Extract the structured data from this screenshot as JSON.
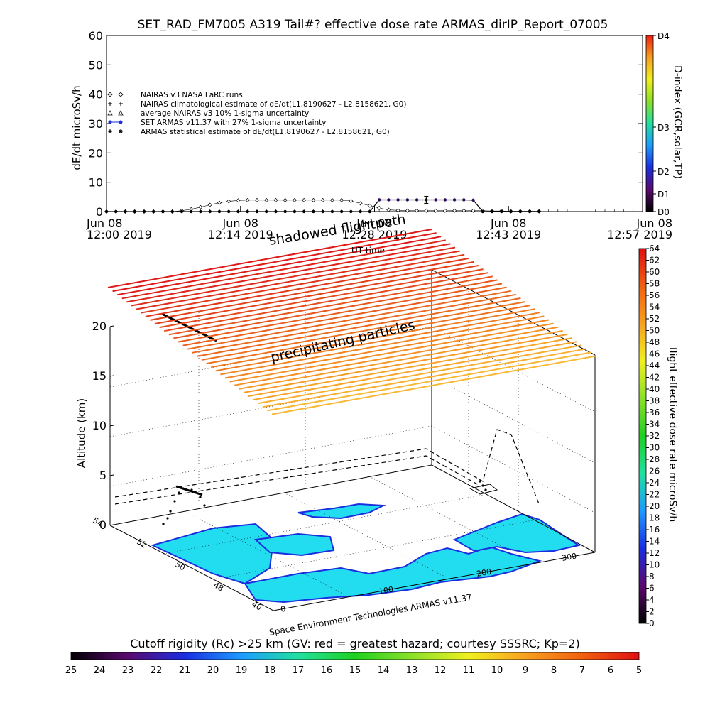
{
  "chart_data": [
    {
      "type": "line",
      "title": "SET_RAD_FM7005   A319 Tail#? effective dose rate ARMAS_dirIP_Report_07005",
      "ylabel": "dE/dt microSv/h",
      "xlabel": "UT time",
      "ylim": [
        0,
        60
      ],
      "y_ticks": [
        "0",
        "10",
        "20",
        "30",
        "40",
        "50",
        "60"
      ],
      "x_ticks": [
        {
          "line1": "Jun 08",
          "line2": "12:00 2019"
        },
        {
          "line1": "Jun 08",
          "line2": "12:14 2019"
        },
        {
          "line1": "Jun 08",
          "line2": "12:28 2019"
        },
        {
          "line1": "Jun 08",
          "line2": "12:43 2019"
        },
        {
          "line1": "Jun 08",
          "line2": "12:57 2019"
        }
      ],
      "x_range_minutes": [
        0,
        57
      ],
      "legend_position": "upper-left",
      "legend": [
        "NAIRAS v3 NASA LaRC runs",
        "NAIRAS climatological estimate of dE/dt(L1.8190627 - L2.8158621, G0)",
        "average NAIRAS v3 10% 1-sigma uncertainty",
        "SET ARMAS v11.37 with 27% 1-sigma uncertainty",
        "ARMAS statistical estimate of dE/dt(L1.8190627 - L2.8158621, G0)"
      ],
      "series": [
        {
          "name": "NAIRAS v3 NASA LaRC runs",
          "marker": "diamond",
          "x": [
            0,
            1,
            2,
            3,
            4,
            5,
            6,
            7,
            8,
            9,
            10,
            11,
            12,
            13,
            14,
            15,
            16,
            17,
            18,
            19,
            20,
            21,
            22,
            23,
            24,
            25,
            26,
            27,
            28,
            29,
            30,
            31,
            32,
            33,
            34,
            35,
            36,
            37,
            38,
            39,
            40,
            41,
            42,
            43,
            44,
            45,
            46
          ],
          "y": [
            0,
            0,
            0,
            0,
            0,
            0,
            0,
            0,
            0.3,
            0.8,
            1.5,
            2.3,
            3.0,
            3.5,
            3.8,
            3.9,
            3.9,
            3.9,
            3.9,
            3.9,
            3.9,
            3.9,
            3.9,
            3.9,
            3.9,
            3.9,
            3.6,
            2.8,
            2.0,
            1.2,
            0.6,
            0.4,
            0.3,
            0.3,
            0.3,
            0.3,
            0.3,
            0.3,
            0.3,
            0.3,
            0.3,
            0.2,
            0.2,
            0.1,
            0.1,
            0.1,
            0.1
          ]
        },
        {
          "name": "SET ARMAS v11.37 with 27% 1-sigma uncertainty",
          "marker": "dot",
          "x": [
            0,
            1,
            2,
            3,
            4,
            5,
            6,
            7,
            8,
            9,
            10,
            11,
            12,
            13,
            14,
            15,
            16,
            17,
            18,
            19,
            20,
            21,
            22,
            23,
            24,
            25,
            26,
            27,
            28,
            29,
            30,
            31,
            32,
            33,
            34,
            35,
            36,
            37,
            38,
            39,
            40,
            41,
            42,
            43,
            44,
            45,
            46
          ],
          "y": [
            0,
            0,
            0,
            0,
            0,
            0,
            0,
            0,
            0,
            0,
            0,
            0,
            0,
            0,
            0,
            0,
            0,
            0,
            0,
            0,
            0,
            0,
            0,
            0,
            0,
            0,
            0,
            0,
            0,
            4.0,
            4.0,
            4.0,
            4.0,
            4.0,
            4.0,
            4.0,
            4.0,
            4.0,
            4.0,
            3.9,
            0,
            0,
            0,
            0,
            0,
            0,
            0
          ]
        }
      ],
      "right_axis": {
        "label": "D-index (GCR,solar,TP)",
        "ticks": [
          "D0",
          "D1",
          "D2",
          "D3",
          "D4"
        ],
        "colors": [
          "#000000",
          "#5a0a6e",
          "#1a2ee0",
          "#1e9bff",
          "#20e0a0",
          "#8be02a",
          "#f0f020",
          "#f8a020",
          "#f02010"
        ]
      }
    },
    {
      "type": "scatter",
      "title": "",
      "zlabel": "Altitude (km)",
      "z_ticks": [
        "0",
        "5",
        "10",
        "15",
        "20"
      ],
      "zlim": [
        0,
        20
      ],
      "lon_ticks": [
        "0",
        "100",
        "200",
        "300"
      ],
      "lat_ticks": [
        "40",
        "48",
        "50",
        "52",
        "54"
      ],
      "annotations": [
        "shadowed flightpath",
        "precipitating particles",
        "UT time",
        "Space Environment Technologies ARMAS v11.37"
      ],
      "flight_track_altitude_km": [
        0.5,
        1.5,
        2.5,
        3.0,
        3.0,
        3.0,
        3.0,
        3.0,
        3.0,
        3.0,
        3.0,
        3.0,
        2.5,
        1.5,
        0.5
      ],
      "colorbar_right": {
        "label": "flight effective dose rate microSv/h",
        "ticks": [
          "0",
          "2",
          "4",
          "6",
          "8",
          "10",
          "12",
          "14",
          "16",
          "18",
          "20",
          "22",
          "24",
          "26",
          "28",
          "30",
          "32",
          "34",
          "36",
          "38",
          "40",
          "42",
          "44",
          "46",
          "48",
          "50",
          "52",
          "54",
          "56",
          "58",
          "60",
          "62",
          "64"
        ],
        "colors": [
          "#000000",
          "#5a0a6e",
          "#1a2ee0",
          "#1e9bff",
          "#20e0a0",
          "#20d020",
          "#8be02a",
          "#f0f020",
          "#f8a020",
          "#f06010",
          "#e01010"
        ]
      },
      "colorbar_bottom": {
        "label": "Cutoff rigidity (Rc) >25 km (GV: red = greatest hazard; courtesy SSSRC; Kp=2)",
        "ticks": [
          "25",
          "24",
          "23",
          "22",
          "21",
          "20",
          "19",
          "18",
          "17",
          "16",
          "15",
          "14",
          "13",
          "12",
          "11",
          "10",
          "9",
          "8",
          "7",
          "6",
          "5"
        ],
        "colors": [
          "#000000",
          "#5a0a6e",
          "#1a2ee0",
          "#1e9bff",
          "#20e0a0",
          "#20d020",
          "#8be02a",
          "#f0f020",
          "#f8a020",
          "#f06010",
          "#e01010"
        ]
      }
    }
  ]
}
